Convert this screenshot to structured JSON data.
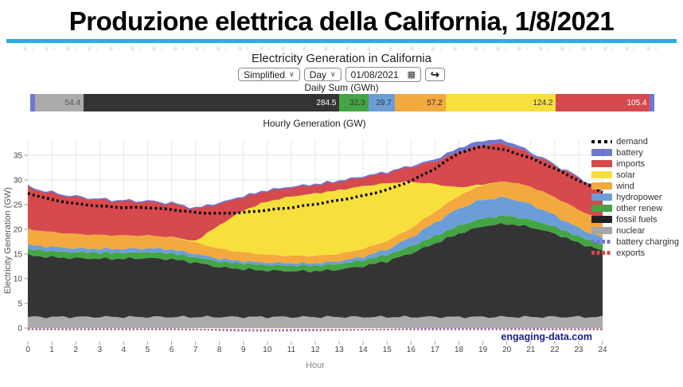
{
  "page": {
    "main_title": "Produzione elettrica della California, 1/8/2021",
    "underline_color": "#29ace3"
  },
  "app": {
    "title": "Electricity Generation in California",
    "controls": {
      "mode_select": "Simplified",
      "period_select": "Day",
      "date_value": "01/08/2021",
      "icons": {
        "caret": "∨",
        "calendar": "▦",
        "share": "↪"
      }
    },
    "daily_sum_label": "Daily Sum (GWh)",
    "hourly_label": "Hourly Generation (GW)",
    "watermark": "engaging-data.com"
  },
  "daily_bar": {
    "segments": [
      {
        "name": "battery",
        "label": "",
        "pct": 0.8,
        "color": "#7077d1",
        "text_color": "#ffffff"
      },
      {
        "name": "nuclear",
        "label": "54.4",
        "pct": 7.75,
        "color": "#ababab",
        "text_color": "#555555"
      },
      {
        "name": "fossil-fuels",
        "label": "284.5",
        "pct": 41.0,
        "color": "#343434",
        "text_color": "#ffffff"
      },
      {
        "name": "other-renew",
        "label": "32.3",
        "pct": 4.6,
        "color": "#44a544",
        "text_color": "#333333"
      },
      {
        "name": "hydropower",
        "label": "29.7",
        "pct": 4.25,
        "color": "#6b9ed8",
        "text_color": "#333333"
      },
      {
        "name": "wind",
        "label": "57.2",
        "pct": 8.15,
        "color": "#f3a93e",
        "text_color": "#333333"
      },
      {
        "name": "solar",
        "label": "124.2",
        "pct": 17.7,
        "color": "#f7e03b",
        "text_color": "#333333"
      },
      {
        "name": "imports",
        "label": "105.4",
        "pct": 15.05,
        "color": "#d6494d",
        "text_color": "#ffffff"
      },
      {
        "name": "battery-charging",
        "label": "",
        "pct": 0.7,
        "color": "#7077d1",
        "text_color": "#ffffff"
      }
    ]
  },
  "chart_data": {
    "type": "area",
    "title": "Hourly Generation (GW)",
    "xlabel": "Hour",
    "ylabel": "Electricity Generation (GW)",
    "x": [
      0,
      1,
      2,
      3,
      4,
      5,
      6,
      7,
      8,
      9,
      10,
      11,
      12,
      13,
      14,
      15,
      16,
      17,
      18,
      19,
      20,
      21,
      22,
      23,
      24
    ],
    "xticks": [
      0,
      1,
      2,
      3,
      4,
      5,
      6,
      7,
      8,
      9,
      10,
      11,
      12,
      13,
      14,
      15,
      16,
      17,
      18,
      19,
      20,
      21,
      22,
      23,
      24
    ],
    "yticks": [
      0,
      5,
      10,
      15,
      20,
      25,
      30,
      35
    ],
    "ylim": [
      -1,
      38.7
    ],
    "grid": true,
    "legend_position": "right",
    "series": [
      {
        "name": "nuclear",
        "color": "#ababab",
        "values": [
          2.25,
          2.25,
          2.25,
          2.25,
          2.25,
          2.25,
          2.25,
          2.25,
          2.25,
          2.25,
          2.25,
          2.25,
          2.25,
          2.25,
          2.25,
          2.25,
          2.25,
          2.25,
          2.25,
          2.25,
          2.25,
          2.25,
          2.25,
          2.25,
          2.25
        ]
      },
      {
        "name": "fossil fuels",
        "color": "#343434",
        "values": [
          12.5,
          12.1,
          11.9,
          11.8,
          11.8,
          11.9,
          11.7,
          11.0,
          10.1,
          9.7,
          9.4,
          9.3,
          9.3,
          9.6,
          10.3,
          11.3,
          12.9,
          14.9,
          16.9,
          18.4,
          18.9,
          18.2,
          16.9,
          15.0,
          13.4
        ]
      },
      {
        "name": "other renew",
        "color": "#44a544",
        "values": [
          1.2,
          1.2,
          1.2,
          1.2,
          1.2,
          1.2,
          1.2,
          1.1,
          1.1,
          1.1,
          1.1,
          1.1,
          1.1,
          1.1,
          1.2,
          1.3,
          1.4,
          1.5,
          1.6,
          1.6,
          1.6,
          1.5,
          1.4,
          1.3,
          1.3
        ]
      },
      {
        "name": "hydropower",
        "color": "#6b9ed8",
        "values": [
          0.9,
          0.9,
          0.8,
          0.8,
          0.8,
          0.8,
          0.8,
          0.7,
          0.6,
          0.5,
          0.5,
          0.5,
          0.5,
          0.6,
          0.7,
          1.1,
          1.8,
          2.7,
          3.5,
          3.8,
          3.7,
          3.1,
          2.3,
          1.7,
          1.3
        ]
      },
      {
        "name": "wind",
        "color": "#f3a93e",
        "values": [
          3.2,
          3.0,
          2.9,
          2.8,
          2.7,
          2.6,
          2.5,
          2.3,
          2.0,
          1.8,
          1.6,
          1.5,
          1.5,
          1.5,
          1.6,
          1.7,
          1.9,
          2.2,
          2.6,
          3.0,
          3.3,
          3.6,
          3.7,
          3.7,
          3.6
        ]
      },
      {
        "name": "solar",
        "color": "#f7e03b",
        "values": [
          0,
          0,
          0,
          0,
          0,
          0,
          0,
          0.3,
          4.8,
          8.5,
          10.8,
          12.0,
          12.6,
          12.9,
          12.7,
          11.7,
          9.4,
          5.6,
          1.6,
          0.1,
          0,
          0,
          0,
          0,
          0
        ]
      },
      {
        "name": "imports",
        "color": "#d6494d",
        "values": [
          8.5,
          7.9,
          7.5,
          7.2,
          7.0,
          6.9,
          6.8,
          6.6,
          4.4,
          2.8,
          2.2,
          1.9,
          1.8,
          1.8,
          1.9,
          2.2,
          3.0,
          4.6,
          7.2,
          8.0,
          7.5,
          6.6,
          6.4,
          6.5,
          5.8
        ]
      },
      {
        "name": "battery",
        "color": "#7077d1",
        "values": [
          0,
          0,
          0,
          0,
          0,
          0,
          0,
          0,
          0,
          0,
          0,
          0,
          0,
          0,
          0,
          0,
          0.1,
          0.3,
          0.7,
          0.8,
          0.6,
          0.3,
          0.1,
          0,
          0
        ]
      }
    ],
    "demand": {
      "name": "demand",
      "color": "#000000",
      "style": "dotted",
      "values": [
        27.3,
        26.0,
        25.2,
        24.7,
        24.4,
        24.4,
        24.0,
        23.4,
        23.2,
        23.4,
        23.9,
        24.4,
        25.1,
        25.9,
        26.8,
        28.0,
        29.8,
        32.3,
        35.5,
        36.8,
        36.0,
        34.4,
        32.3,
        29.9,
        27.5
      ]
    },
    "negative_series": [
      {
        "name": "battery charging",
        "color": "#7077d1",
        "style": "dashed",
        "values": [
          -0.15,
          -0.15,
          -0.15,
          -0.15,
          -0.15,
          -0.15,
          -0.15,
          -0.25,
          -0.45,
          -0.6,
          -0.6,
          -0.55,
          -0.5,
          -0.45,
          -0.35,
          -0.25,
          -0.15,
          -0.1,
          -0.1,
          -0.1,
          -0.1,
          -0.1,
          -0.15,
          -0.15,
          -0.15
        ]
      },
      {
        "name": "exports",
        "color": "#d6494d",
        "style": "dashed",
        "values": [
          -0.3,
          -0.3,
          -0.3,
          -0.3,
          -0.3,
          -0.3,
          -0.3,
          -0.3,
          -0.3,
          -0.3,
          -0.3,
          -0.3,
          -0.3,
          -0.3,
          -0.3,
          -0.3,
          -0.3,
          -0.3,
          -0.3,
          -0.3,
          -0.3,
          -0.3,
          -0.3,
          -0.3,
          -0.3
        ]
      }
    ],
    "legend": [
      {
        "label": "demand",
        "color": "#000000",
        "style": "dotted"
      },
      {
        "label": "battery",
        "color": "#7077d1",
        "style": "solid"
      },
      {
        "label": "imports",
        "color": "#d6494d",
        "style": "solid"
      },
      {
        "label": "solar",
        "color": "#f7e03b",
        "style": "solid"
      },
      {
        "label": "wind",
        "color": "#f3a93e",
        "style": "solid"
      },
      {
        "label": "hydropower",
        "color": "#6b9ed8",
        "style": "solid"
      },
      {
        "label": "other renew",
        "color": "#44a544",
        "style": "solid"
      },
      {
        "label": "fossil fuels",
        "color": "#222222",
        "style": "solid"
      },
      {
        "label": "nuclear",
        "color": "#a6a6a6",
        "style": "solid"
      },
      {
        "label": "battery charging",
        "color": "#7077d1",
        "style": "beaded"
      },
      {
        "label": "exports",
        "color": "#d6494d",
        "style": "beaded"
      }
    ]
  }
}
